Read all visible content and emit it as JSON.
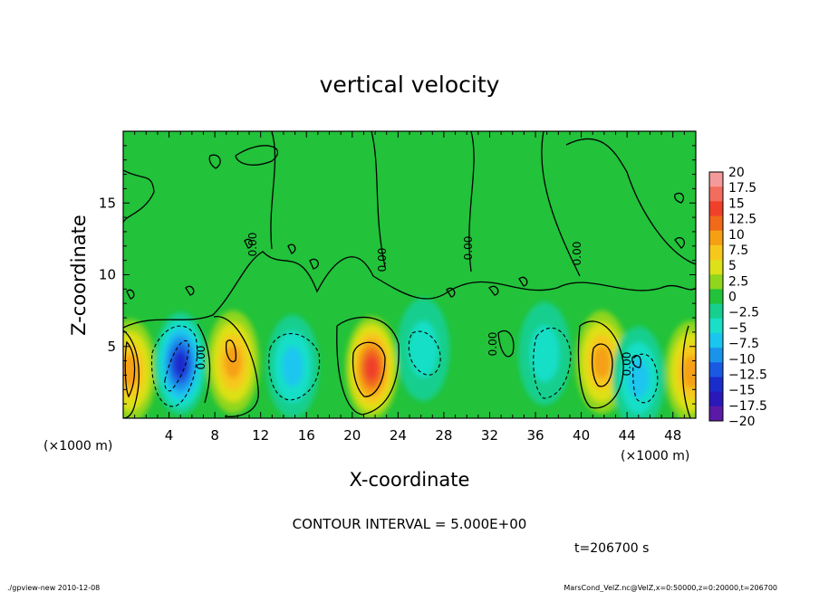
{
  "chart_data": {
    "type": "heatmap",
    "title": "vertical velocity",
    "xlabel": "X-coordinate",
    "ylabel": "Z-coordinate",
    "x_unit_left": "(×1000 m)",
    "x_unit_right": "(×1000 m)",
    "xlim": [
      0,
      50
    ],
    "ylim": [
      0,
      20
    ],
    "x_ticks": [
      4,
      8,
      12,
      16,
      20,
      24,
      28,
      32,
      36,
      40,
      44,
      48
    ],
    "y_ticks": [
      5,
      10,
      15
    ],
    "colorbar": {
      "levels": [
        "20",
        "17.5",
        "15",
        "12.5",
        "10",
        "7.5",
        "5",
        "2.5",
        "0",
        "−2.5",
        "−5",
        "−7.5",
        "−10",
        "−12.5",
        "−15",
        "−17.5",
        "−20"
      ],
      "colors": [
        "#f59a9a",
        "#f26d5e",
        "#f0402a",
        "#f06a1a",
        "#f5a013",
        "#f7c81c",
        "#dce119",
        "#8fd61c",
        "#22c23a",
        "#17cf8e",
        "#19dfc8",
        "#1ac6ee",
        "#1a94ea",
        "#1a5ae2",
        "#1a2ccc",
        "#2b18b8",
        "#5a1aa6"
      ]
    },
    "contour_interval": "CONTOUR INTERVAL = 5.000E+00",
    "contour_labels": [
      "0.00",
      "0.00",
      "0.00",
      "0.00",
      "0.00",
      "0.00",
      "0.00"
    ],
    "blobs": [
      {
        "x": 0.6,
        "z": 3.3,
        "value": 10
      },
      {
        "x": 5.0,
        "z": 3.8,
        "value": -15
      },
      {
        "x": 9.6,
        "z": 3.9,
        "value": 10
      },
      {
        "x": 14.8,
        "z": 3.6,
        "value": -7.5
      },
      {
        "x": 21.7,
        "z": 3.5,
        "value": 15
      },
      {
        "x": 26.2,
        "z": 4.8,
        "value": -5
      },
      {
        "x": 36.8,
        "z": 4.5,
        "value": -5
      },
      {
        "x": 41.8,
        "z": 3.9,
        "value": 10
      },
      {
        "x": 45.0,
        "z": 2.8,
        "value": -7.5
      },
      {
        "x": 49.6,
        "z": 3.2,
        "value": 10
      }
    ]
  },
  "footer": {
    "time": "t=206700 s",
    "left": "./gpview-new  2010-12-08",
    "right": "MarsCond_VelZ.nc@VelZ,x=0:50000,z=0:20000,t=206700"
  }
}
